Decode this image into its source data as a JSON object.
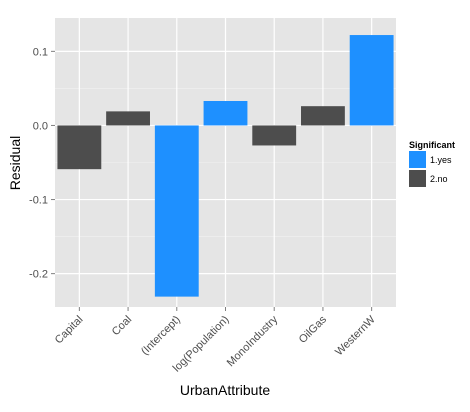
{
  "chart_data": {
    "type": "bar",
    "xlabel": "UrbanAttribute",
    "ylabel": "Residual",
    "categories": [
      "Capital",
      "Coal",
      "(Intercept)",
      "log(Population)",
      "MonoIndustry",
      "OilGas",
      "WesternW"
    ],
    "values": [
      -0.059,
      0.019,
      -0.231,
      0.033,
      -0.027,
      0.026,
      0.122
    ],
    "significant": [
      "2.no",
      "2.no",
      "1.yes",
      "1.yes",
      "2.no",
      "2.no",
      "1.yes"
    ],
    "ylim": [
      -0.245,
      0.145
    ],
    "yticks": [
      -0.2,
      -0.1,
      0.0,
      0.1
    ],
    "ytick_labels": [
      "-0.2",
      "-0.1",
      "0.0",
      "0.1"
    ],
    "grid": true,
    "legend": {
      "title": "Significant",
      "position": "right",
      "entries": [
        {
          "label": "1.yes",
          "color": "#1e90ff"
        },
        {
          "label": "2.no",
          "color": "#4d4d4d"
        }
      ]
    },
    "colors": {
      "panel": "#e5e5e5",
      "grid_major": "#ffffff",
      "grid_minor": "#f2f2f2"
    }
  }
}
